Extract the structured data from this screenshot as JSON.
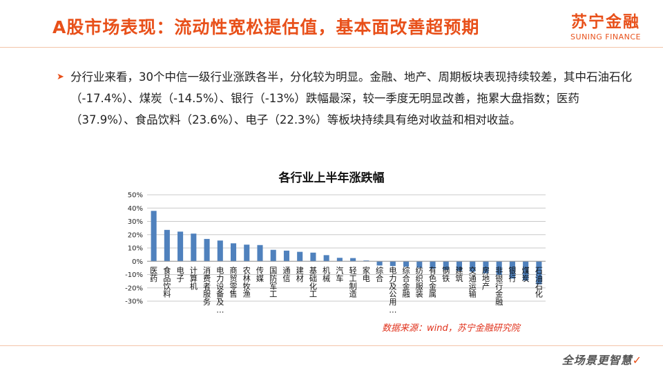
{
  "header": {
    "title": "A股市场表现：流动性宽松提估值，基本面改善超预期",
    "logo_cn": "苏宁金融",
    "logo_en": "SUNING FINANCE"
  },
  "bullet": {
    "text": "分行业来看，30个中信一级行业涨跌各半，分化较为明显。金融、地产、周期板块表现持续较差，其中石油石化（-17.4%）、煤炭（-14.5%）、银行（-13%）跌幅最深，较一季度无明显改善，拖累大盘指数；医药（37.9%）、食品饮料（23.6%）、电子（22.3%）等板块持续具有绝对收益和相对收益。"
  },
  "footer": {
    "source": "数据来源：wind，苏宁金融研究院",
    "slogan": "全场景更智慧",
    "slogan_mark": "✓"
  },
  "colors": {
    "accent": "#e8501a",
    "bar": "#4f81bd",
    "grid": "#c8c8c8",
    "source": "#e0301a"
  },
  "chart_data": {
    "type": "bar",
    "title": "各行业上半年涨跌幅",
    "xlabel": "",
    "ylabel": "",
    "ylim": [
      -30,
      50
    ],
    "yticks": [
      50,
      40,
      30,
      20,
      10,
      0,
      -10,
      -20,
      -30
    ],
    "ytick_labels": [
      "50%",
      "40%",
      "30%",
      "20%",
      "10%",
      "0%",
      "-10%",
      "-20%",
      "-30%"
    ],
    "grid": true,
    "legend": "none",
    "categories": [
      "医药",
      "食品饮料",
      "电子",
      "计算机",
      "消费者服务",
      "电力设备及新能源",
      "商贸零售",
      "农林牧渔",
      "传媒",
      "国防军工",
      "通信",
      "建材",
      "基础化工",
      "机械",
      "汽车",
      "轻工制造",
      "家电",
      "综合",
      "电力及公用事业",
      "综合金融",
      "纺织服装",
      "有色金属",
      "钢铁",
      "建筑",
      "交通运输",
      "房地产",
      "非银行金融",
      "银行",
      "煤炭",
      "石油石化"
    ],
    "tick_labels": [
      "医药",
      "食品饮料",
      "电子",
      "计算机",
      "消费者服务",
      "电力设备及…",
      "商贸零售",
      "农林牧渔",
      "传媒",
      "国防军工",
      "通信",
      "建材",
      "基础化工",
      "机械",
      "汽车",
      "轻工制造",
      "家电",
      "综合",
      "电力及公用…",
      "综合金融",
      "纺织服装",
      "有色金属",
      "钢铁",
      "建筑",
      "交通运输",
      "房地产",
      "非银行金融",
      "银行",
      "煤炭",
      "石油石化"
    ],
    "label_rows": [
      0,
      1,
      0,
      1,
      2,
      1,
      0,
      1,
      0,
      2,
      0,
      1,
      0,
      1,
      0,
      2,
      1,
      0,
      2,
      1,
      0,
      1,
      0,
      1,
      2,
      1,
      2,
      0,
      1,
      2
    ],
    "values": [
      37.9,
      23.6,
      22.3,
      20.8,
      16.8,
      15.6,
      13.5,
      12.5,
      12.2,
      8.6,
      8.0,
      7.1,
      6.5,
      4.6,
      2.6,
      2.4,
      0.6,
      -3.2,
      -3.6,
      -4.1,
      -4.8,
      -5.5,
      -6.5,
      -7.3,
      -7.9,
      -9.0,
      -10.3,
      -13.0,
      -14.5,
      -17.4
    ]
  }
}
